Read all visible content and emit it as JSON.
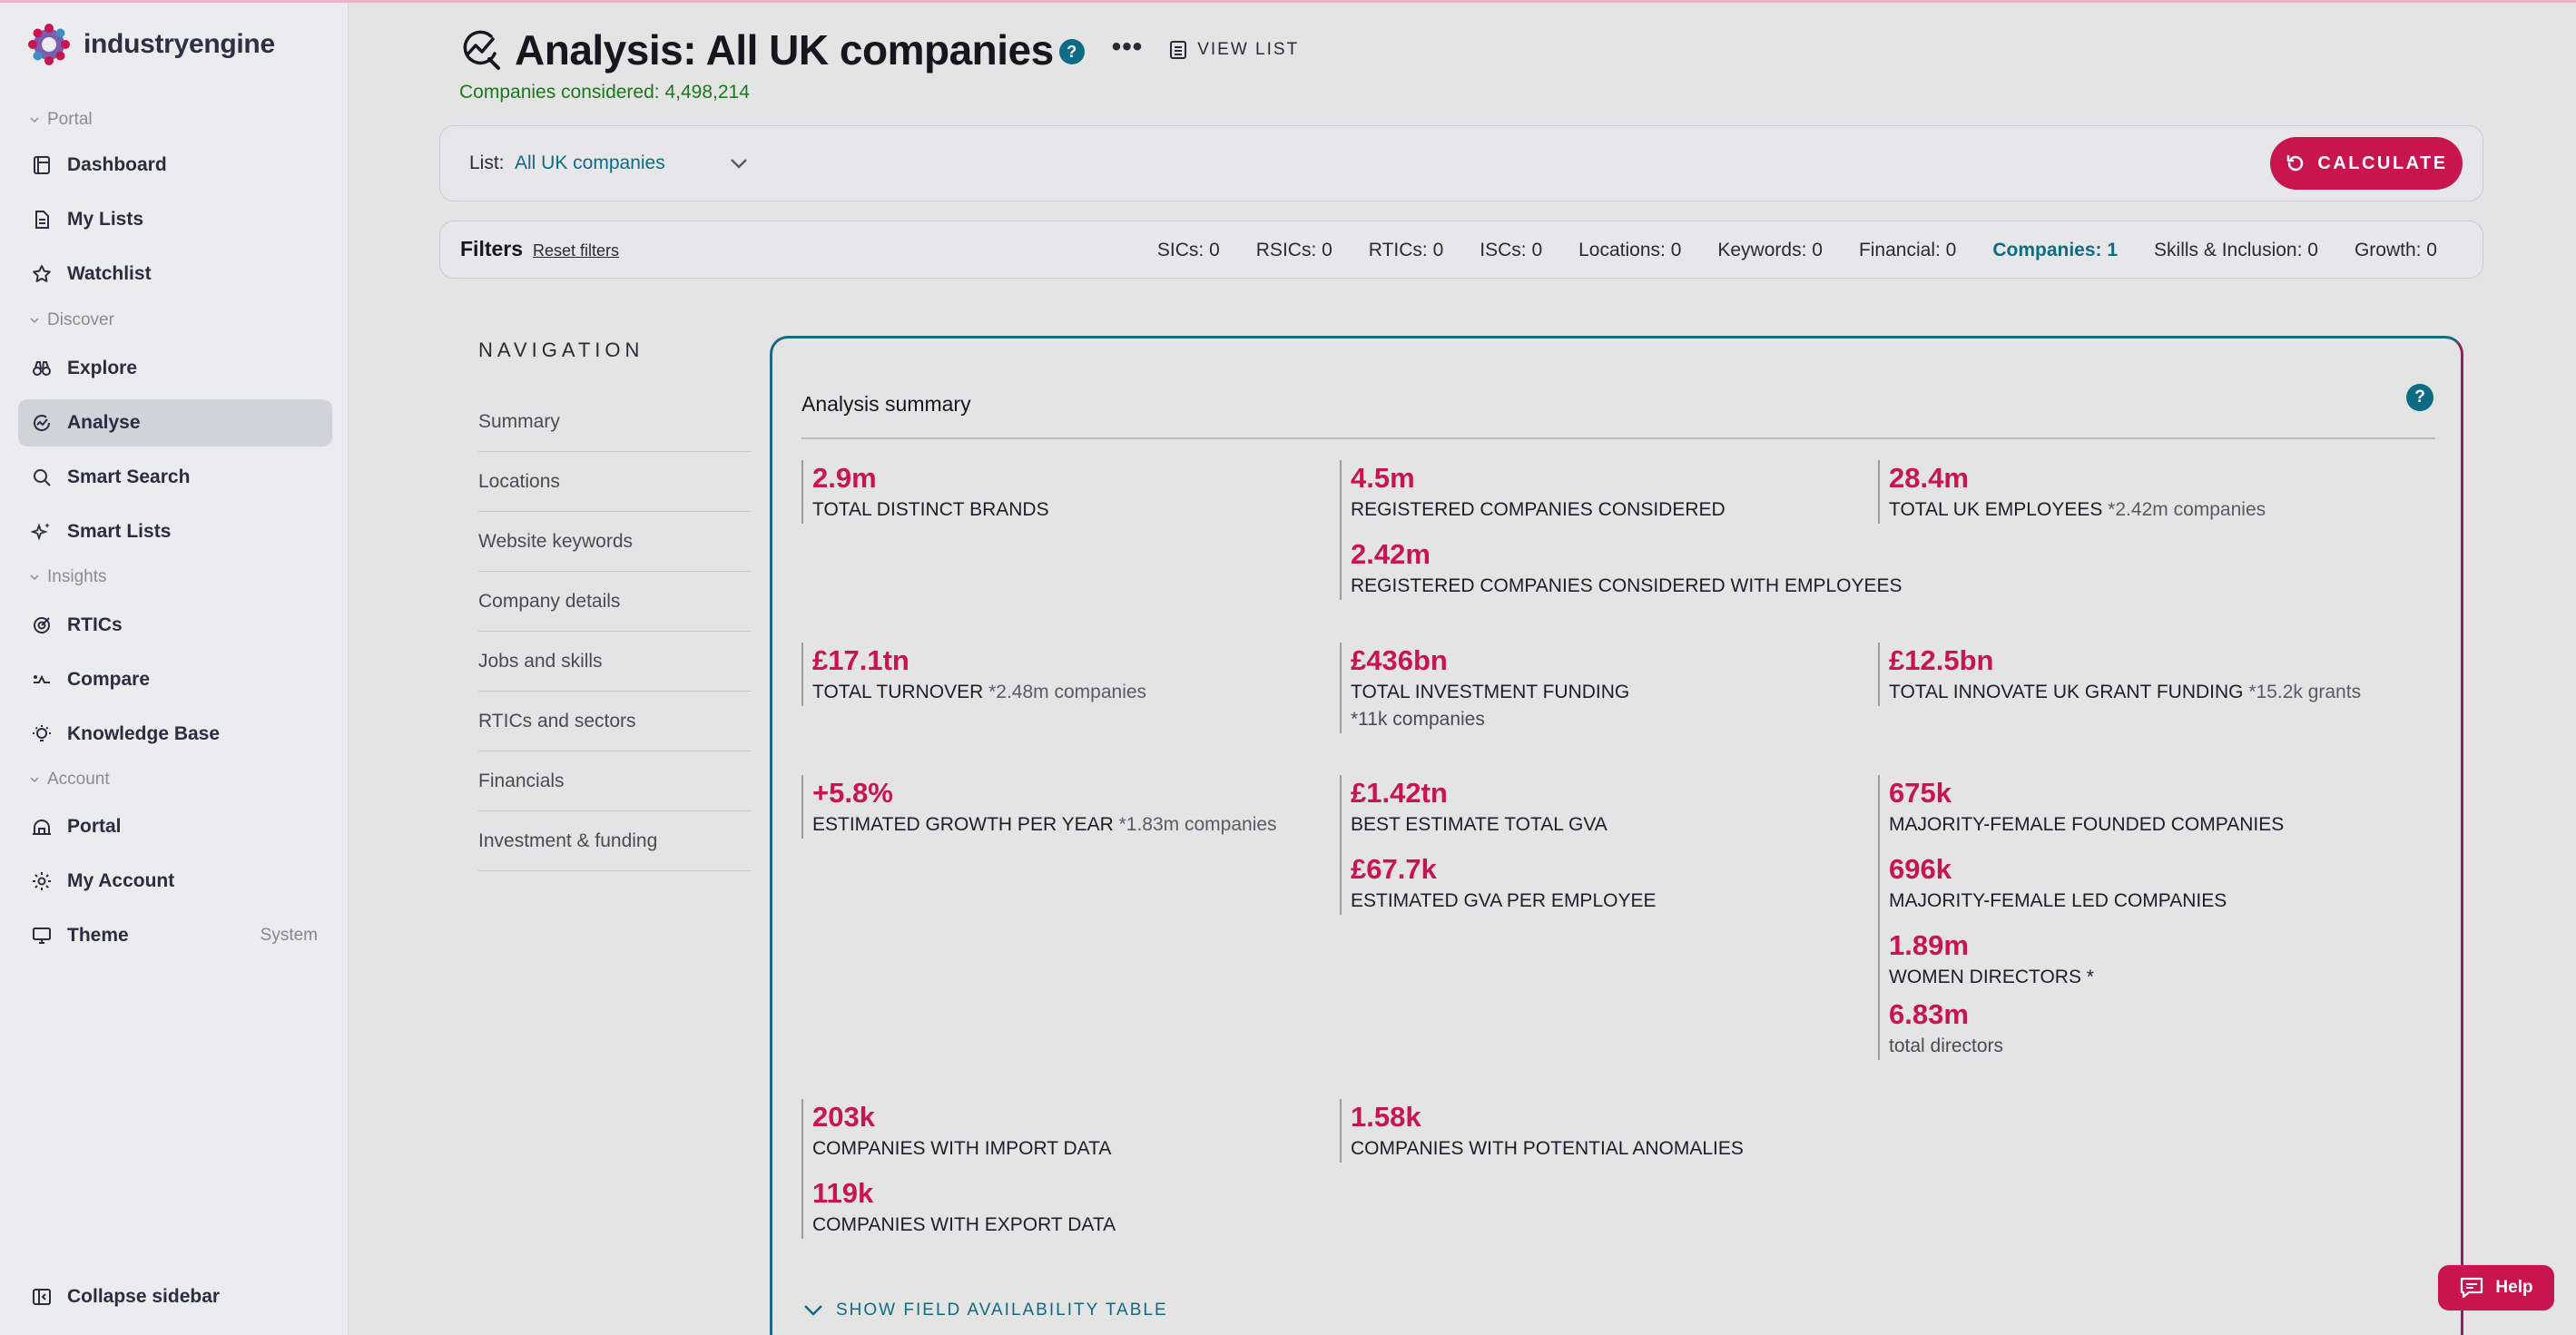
{
  "brand": {
    "name": "industryengine"
  },
  "sidebar": {
    "sections": {
      "portal": "Portal",
      "discover": "Discover",
      "insights": "Insights",
      "account": "Account"
    },
    "items": {
      "dashboard": "Dashboard",
      "my_lists": "My Lists",
      "watchlist": "Watchlist",
      "explore": "Explore",
      "analyse": "Analyse",
      "smart_search": "Smart Search",
      "smart_lists": "Smart Lists",
      "rtics": "RTICs",
      "compare": "Compare",
      "knowledge_base": "Knowledge Base",
      "portal": "Portal",
      "my_account": "My Account",
      "theme": "Theme",
      "theme_value": "System"
    },
    "collapse_label": "Collapse sidebar",
    "active_item": "analyse"
  },
  "header": {
    "title": "Analysis: All UK companies",
    "help": "?",
    "more": "•••",
    "view_list": "VIEW LIST",
    "considered": "Companies considered: 4,498,214"
  },
  "list_bar": {
    "label": "List:",
    "value": "All UK companies",
    "calculate": "CALCULATE"
  },
  "filters": {
    "title": "Filters",
    "reset": "Reset filters",
    "counts": [
      {
        "label": "SICs: 0",
        "active": false
      },
      {
        "label": "RSICs: 0",
        "active": false
      },
      {
        "label": "RTICs: 0",
        "active": false
      },
      {
        "label": "ISCs: 0",
        "active": false
      },
      {
        "label": "Locations: 0",
        "active": false
      },
      {
        "label": "Keywords: 0",
        "active": false
      },
      {
        "label": "Financial: 0",
        "active": false
      },
      {
        "label": "Companies: 1",
        "active": true
      },
      {
        "label": "Skills & Inclusion: 0",
        "active": false
      },
      {
        "label": "Growth: 0",
        "active": false
      }
    ]
  },
  "navigation": {
    "title": "NAVIGATION",
    "items": [
      "Summary",
      "Locations",
      "Website keywords",
      "Company details",
      "Jobs and skills",
      "RTICs and sectors",
      "Financials",
      "Investment & funding"
    ]
  },
  "summary": {
    "title": "Analysis summary",
    "help": "?",
    "brands": {
      "value": "2.9m",
      "label": "TOTAL DISTINCT BRANDS"
    },
    "registered": {
      "value": "4.5m",
      "label": "REGISTERED COMPANIES CONSIDERED"
    },
    "registered_emp": {
      "value": "2.42m",
      "label": "REGISTERED COMPANIES CONSIDERED WITH EMPLOYEES"
    },
    "employees": {
      "value": "28.4m",
      "label": "TOTAL UK EMPLOYEES",
      "note": "*2.42m companies"
    },
    "turnover": {
      "value": "£17.1tn",
      "label": "TOTAL TURNOVER",
      "note": "*2.48m companies"
    },
    "investment": {
      "value": "£436bn",
      "label": "TOTAL INVESTMENT FUNDING",
      "note": "*11k companies"
    },
    "grant": {
      "value": "£12.5bn",
      "label": "TOTAL INNOVATE UK GRANT FUNDING",
      "note": "*15.2k grants"
    },
    "growth": {
      "value": "+5.8%",
      "label": "ESTIMATED GROWTH PER YEAR",
      "note": "*1.83m companies"
    },
    "gva": {
      "value": "£1.42tn",
      "label": "BEST ESTIMATE TOTAL GVA"
    },
    "gva_emp": {
      "value": "£67.7k",
      "label": "ESTIMATED GVA PER EMPLOYEE"
    },
    "female_founded": {
      "value": "675k",
      "label": "MAJORITY-FEMALE FOUNDED COMPANIES"
    },
    "female_led": {
      "value": "696k",
      "label": "MAJORITY-FEMALE LED COMPANIES"
    },
    "women_directors": {
      "value": "1.89m",
      "label": "WOMEN DIRECTORS *"
    },
    "total_directors": {
      "value": "6.83m",
      "label": "total directors"
    },
    "import": {
      "value": "203k",
      "label": "COMPANIES WITH IMPORT DATA"
    },
    "export": {
      "value": "119k",
      "label": "COMPANIES WITH EXPORT DATA"
    },
    "anomalies": {
      "value": "1.58k",
      "label": "COMPANIES WITH POTENTIAL ANOMALIES"
    },
    "show_table": "SHOW FIELD AVAILABILITY TABLE"
  },
  "help_button": "Help",
  "colors": {
    "accent": "#c8144f",
    "teal": "#0e6b85",
    "green": "#1a7a1a"
  }
}
